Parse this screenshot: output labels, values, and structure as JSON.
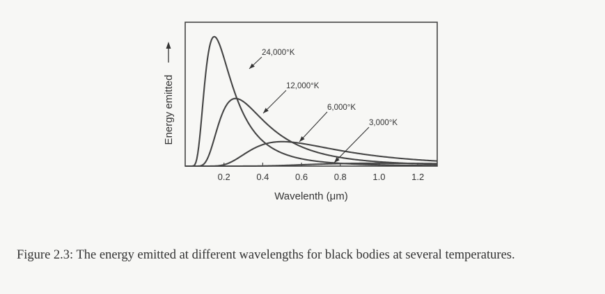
{
  "chart_data": {
    "type": "line",
    "title": "",
    "xlabel": "Wavelenth (μm)",
    "ylabel": "Energy emitted",
    "xlim": [
      0,
      1.3
    ],
    "ylim": [
      0,
      1.0
    ],
    "x_ticks": [
      "0.2",
      "0.4",
      "0.6",
      "0.8",
      "1.0",
      "1.2"
    ],
    "grid": false,
    "series": [
      {
        "name": "24,000°K",
        "peak_x": 0.15,
        "peak_y": 0.9
      },
      {
        "name": "12,000°K",
        "peak_x": 0.26,
        "peak_y": 0.47
      },
      {
        "name": "6,000°K",
        "peak_x": 0.5,
        "peak_y": 0.17
      },
      {
        "name": "3,000°K",
        "peak_x": 1.0,
        "peak_y": 0.02
      }
    ]
  },
  "caption": "Figure 2.3: The energy emitted at different wavelengths for black bodies at several temperatures."
}
